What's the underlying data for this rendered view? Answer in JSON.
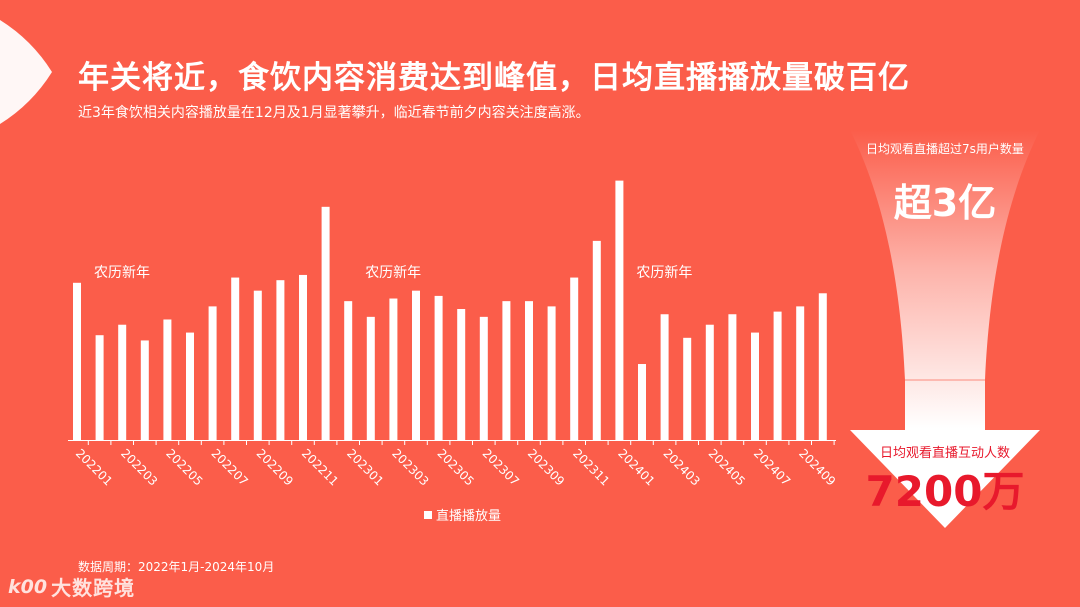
{
  "title": "年关将近，食饮内容消费达到峰值，日均直播播放量破百亿",
  "subtitle": "近3年食饮相关内容播放量在12月及1月显著攀升，临近春节前夕内容关注度高涨。",
  "footer": {
    "period": "数据周期：2022年1月-2024年10月",
    "brand": "大数跨境",
    "brand_mark": "k00"
  },
  "stats": {
    "viewers_label": "日均观看直播超过7s用户数量",
    "viewers_value": "超3亿",
    "interact_label": "日均观看直播互动人数",
    "interact_value": "7200万"
  },
  "colors": {
    "background": "#fb5d4a",
    "bar": "#ffffff",
    "accent": "#e8192c"
  },
  "chart_data": {
    "type": "bar",
    "categories": [
      "202201",
      "202202",
      "202203",
      "202204",
      "202205",
      "202206",
      "202207",
      "202208",
      "202209",
      "202210",
      "202211",
      "202212",
      "202301",
      "202302",
      "202303",
      "202304",
      "202305",
      "202306",
      "202307",
      "202308",
      "202309",
      "202310",
      "202311",
      "202312",
      "202401",
      "202402",
      "202403",
      "202404",
      "202405",
      "202406",
      "202407",
      "202408",
      "202409",
      "202410"
    ],
    "tick_labels": [
      "202201",
      "202203",
      "202205",
      "202207",
      "202209",
      "202211",
      "202301",
      "202303",
      "202305",
      "202307",
      "202309",
      "202311",
      "202401",
      "202403",
      "202405",
      "202407",
      "202409"
    ],
    "series": [
      {
        "name": "直播播放量",
        "values": [
          60,
          40,
          44,
          38,
          46,
          41,
          51,
          62,
          57,
          61,
          63,
          89,
          53,
          47,
          54,
          57,
          55,
          50,
          47,
          53,
          53,
          51,
          62,
          76,
          99,
          29,
          48,
          39,
          44,
          48,
          41,
          49,
          51,
          56
        ]
      }
    ],
    "annotations": [
      {
        "text": "农历新年",
        "category": "202201"
      },
      {
        "text": "农历新年",
        "category": "202301"
      },
      {
        "text": "农历新年",
        "category": "202401"
      }
    ],
    "legend": "bottom-center",
    "grid": false
  }
}
